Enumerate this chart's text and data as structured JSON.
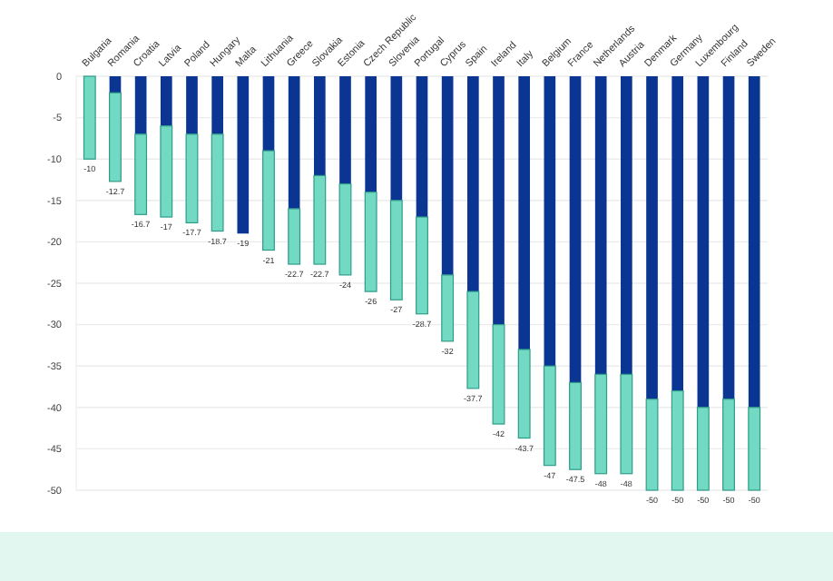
{
  "chart_data": {
    "type": "bar",
    "stacked": true,
    "categories": [
      "Bulgaria",
      "Romania",
      "Croatia",
      "Latvia",
      "Poland",
      "Hungary",
      "Malta",
      "Lithuania",
      "Greece",
      "Slovakia",
      "Estonia",
      "Czech Republic",
      "Slovenia",
      "Portugal",
      "Cyprus",
      "Spain",
      "Ireland",
      "Italy",
      "Belgium",
      "France",
      "Netherlands",
      "Austria",
      "Denmark",
      "Germany",
      "Luxembourg",
      "Finland",
      "Sweden"
    ],
    "series": [
      {
        "color": "#0b3592",
        "values": [
          0,
          -2,
          -7,
          -6,
          -7,
          -7,
          -19,
          -9,
          -16,
          -12,
          -13,
          -14,
          -15,
          -17,
          -24,
          -26,
          -30,
          -33,
          -35,
          -37,
          -36,
          -36,
          -39,
          -38,
          -40,
          -39,
          -40
        ]
      },
      {
        "color": "#72d9c2",
        "values": [
          -10,
          -10.7,
          -9.7,
          -11,
          -10.7,
          -11.7,
          0,
          -12,
          -6.7,
          -10.7,
          -11,
          -12,
          -12,
          -11.7,
          -8,
          -11.7,
          -12,
          -10.7,
          -12,
          -10.5,
          -12,
          -12,
          -11,
          -12,
          -10,
          -11,
          -10
        ]
      }
    ],
    "totals": [
      "-10",
      "-12.7",
      "-16.7",
      "-17",
      "-17.7",
      "-18.7",
      "-19",
      "-21",
      "-22.7",
      "-22.7",
      "-24",
      "-26",
      "-27",
      "-28.7",
      "-32",
      "-37.7",
      "-42",
      "-43.7",
      "-47",
      "-47.5",
      "-48",
      "-48",
      "-50",
      "-50",
      "-50",
      "-50",
      "-50"
    ],
    "ylim": [
      -50,
      0
    ],
    "yticks": [
      0,
      -5,
      -10,
      -15,
      -20,
      -25,
      -30,
      -35,
      -40,
      -45,
      -50
    ],
    "grid": "y"
  }
}
